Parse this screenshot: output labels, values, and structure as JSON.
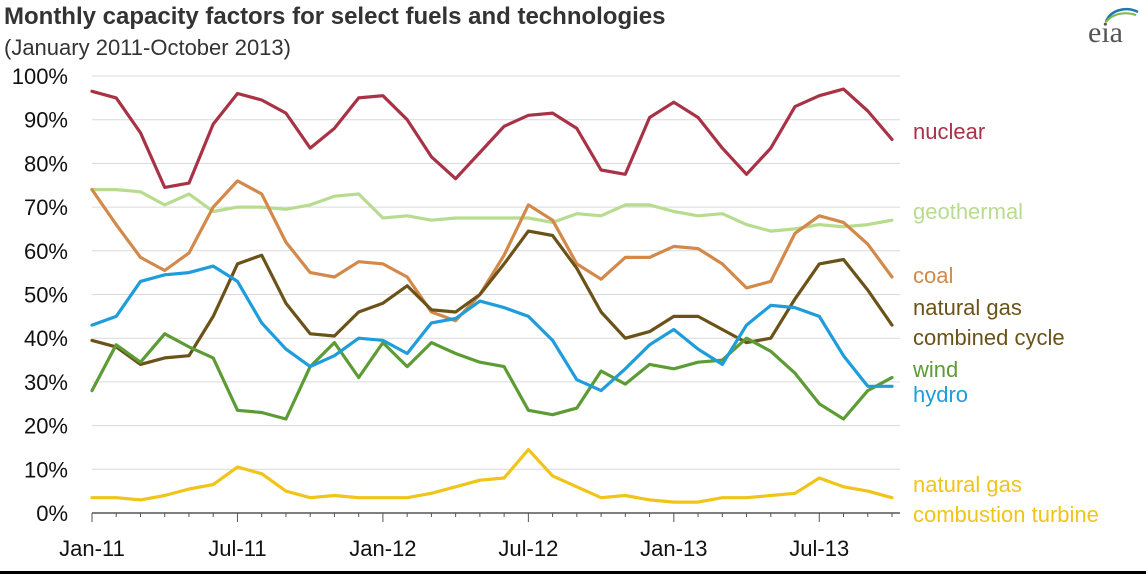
{
  "header": {
    "title": "Monthly capacity factors for select fuels and technologies",
    "subtitle": "(January 2011-October 2013)",
    "logo_text": "eia"
  },
  "colors": {
    "nuclear": "#a83246",
    "geothermal": "#b8dc8f",
    "coal": "#d2894a",
    "natural_gas_combined_cycle": "#6b5218",
    "wind": "#5d9b35",
    "hydro": "#1f9ddb",
    "natural_gas_combustion_turbine": "#f0c419",
    "logo": "#1f77b4"
  },
  "chart_data": {
    "type": "line",
    "x": [
      "Jan-11",
      "Feb-11",
      "Mar-11",
      "Apr-11",
      "May-11",
      "Jun-11",
      "Jul-11",
      "Aug-11",
      "Sep-11",
      "Oct-11",
      "Nov-11",
      "Dec-11",
      "Jan-12",
      "Feb-12",
      "Mar-12",
      "Apr-12",
      "May-12",
      "Jun-12",
      "Jul-12",
      "Aug-12",
      "Sep-12",
      "Oct-12",
      "Nov-12",
      "Dec-12",
      "Jan-13",
      "Feb-13",
      "Mar-13",
      "Apr-13",
      "May-13",
      "Jun-13",
      "Jul-13",
      "Aug-13",
      "Sep-13",
      "Oct-13"
    ],
    "xticks": [
      "Jan-11",
      "Jul-11",
      "Jan-12",
      "Jul-12",
      "Jan-13",
      "Jul-13"
    ],
    "ylim": [
      0,
      100
    ],
    "yticks": [
      "0%",
      "10%",
      "20%",
      "30%",
      "40%",
      "50%",
      "60%",
      "70%",
      "80%",
      "90%",
      "100%"
    ],
    "grid": true,
    "legend": "right",
    "series": [
      {
        "key": "nuclear",
        "label_lines": [
          "nuclear"
        ],
        "values": [
          96.5,
          95,
          87,
          74.5,
          75.5,
          89,
          96,
          94.5,
          91.5,
          83.5,
          88,
          95,
          95.5,
          90,
          81.5,
          76.5,
          82.5,
          88.5,
          91,
          91.5,
          88,
          78.5,
          77.5,
          90.5,
          94,
          90.5,
          83.5,
          77.5,
          83.5,
          93,
          95.5,
          97,
          92,
          85.5
        ]
      },
      {
        "key": "geothermal",
        "label_lines": [
          "geothermal"
        ],
        "values": [
          74,
          74,
          73.5,
          70.5,
          73,
          69,
          70,
          70,
          69.5,
          70.5,
          72.5,
          73,
          67.5,
          68,
          67,
          67.5,
          67.5,
          67.5,
          67.5,
          66.5,
          68.5,
          68,
          70.5,
          70.5,
          69,
          68,
          68.5,
          66,
          64.5,
          65,
          66,
          65.5,
          66,
          67
        ]
      },
      {
        "key": "coal",
        "label_lines": [
          "coal"
        ],
        "values": [
          74,
          66,
          58.5,
          55.5,
          59.5,
          70,
          76,
          73,
          62,
          55,
          54,
          57.5,
          57,
          54,
          46,
          44,
          50,
          59,
          70.5,
          67,
          57,
          53.5,
          58.5,
          58.5,
          61,
          60.5,
          57,
          51.5,
          53,
          64,
          68,
          66.5,
          61.5,
          54
        ]
      },
      {
        "key": "natural_gas_combined_cycle",
        "label_lines": [
          "natural gas",
          "combined cycle"
        ],
        "values": [
          39.5,
          38,
          34,
          35.5,
          36,
          45,
          57,
          59,
          48,
          41,
          40.5,
          46,
          48,
          52,
          46.5,
          46,
          50,
          57,
          64.5,
          63.5,
          56,
          46,
          40,
          41.5,
          45,
          45,
          42,
          39,
          40,
          49,
          57,
          58,
          51,
          43
        ]
      },
      {
        "key": "wind",
        "label_lines": [
          "wind"
        ],
        "values": [
          28,
          38.5,
          34.5,
          41,
          38,
          35.5,
          23.5,
          23,
          21.5,
          33.5,
          39,
          31,
          39,
          33.5,
          39,
          36.5,
          34.5,
          33.5,
          23.5,
          22.5,
          24,
          32.5,
          29.5,
          34,
          33,
          34.5,
          35,
          40,
          37,
          32,
          25,
          21.5,
          28,
          31
        ]
      },
      {
        "key": "hydro",
        "label_lines": [
          "hydro"
        ],
        "values": [
          43,
          45,
          53,
          54.5,
          55,
          56.5,
          53,
          43.5,
          37.5,
          33.5,
          36,
          40,
          39.5,
          36.5,
          43.5,
          44.5,
          48.5,
          47,
          45,
          39.5,
          30.5,
          28,
          33,
          38.5,
          42,
          37.5,
          34,
          43,
          47.5,
          47,
          45,
          36,
          29,
          29
        ]
      },
      {
        "key": "natural_gas_combustion_turbine",
        "label_lines": [
          "natural gas",
          "combustion turbine"
        ],
        "values": [
          3.5,
          3.5,
          3,
          4,
          5.5,
          6.5,
          10.5,
          9,
          5,
          3.5,
          4,
          3.5,
          3.5,
          3.5,
          4.5,
          6,
          7.5,
          8,
          14.5,
          8.5,
          6,
          3.5,
          4,
          3,
          2.5,
          2.5,
          3.5,
          3.5,
          4,
          4.5,
          8,
          6,
          5,
          3.5
        ]
      }
    ]
  }
}
